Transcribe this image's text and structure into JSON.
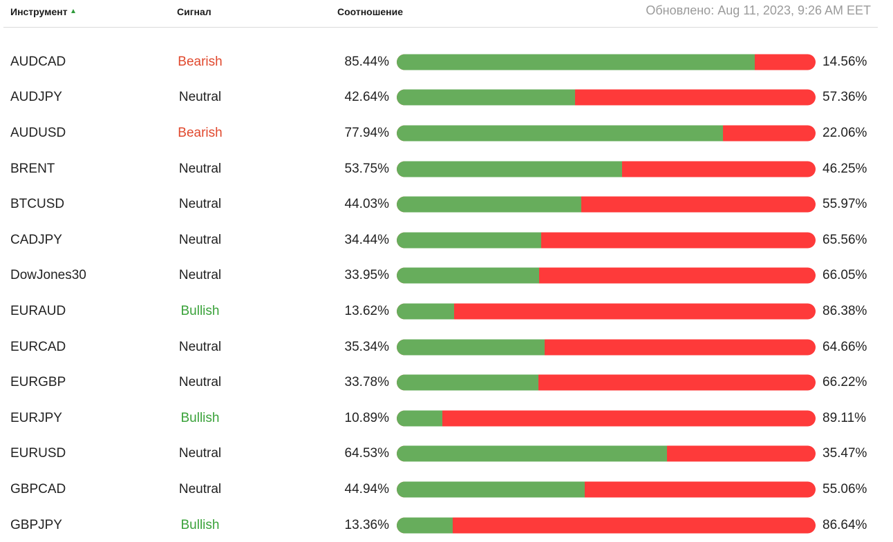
{
  "header": {
    "instrument": "Инструмент",
    "signal": "Сигнал",
    "ratio": "Соотношение",
    "updated": "Обновлено: Aug 11, 2023, 9:26 AM EET"
  },
  "colors": {
    "long": "#67ad5c",
    "short": "#fe3a3a",
    "bearish": "#e0482d",
    "bullish": "#3aa23a",
    "neutral": "#222222"
  },
  "rows": [
    {
      "instrument": "AUDCAD",
      "signal": "Bearish",
      "signal_type": "bearish",
      "long": "85.44%",
      "short": "14.56%",
      "long_value": 85.44
    },
    {
      "instrument": "AUDJPY",
      "signal": "Neutral",
      "signal_type": "neutral",
      "long": "42.64%",
      "short": "57.36%",
      "long_value": 42.64
    },
    {
      "instrument": "AUDUSD",
      "signal": "Bearish",
      "signal_type": "bearish",
      "long": "77.94%",
      "short": "22.06%",
      "long_value": 77.94
    },
    {
      "instrument": "BRENT",
      "signal": "Neutral",
      "signal_type": "neutral",
      "long": "53.75%",
      "short": "46.25%",
      "long_value": 53.75
    },
    {
      "instrument": "BTCUSD",
      "signal": "Neutral",
      "signal_type": "neutral",
      "long": "44.03%",
      "short": "55.97%",
      "long_value": 44.03
    },
    {
      "instrument": "CADJPY",
      "signal": "Neutral",
      "signal_type": "neutral",
      "long": "34.44%",
      "short": "65.56%",
      "long_value": 34.44
    },
    {
      "instrument": "DowJones30",
      "signal": "Neutral",
      "signal_type": "neutral",
      "long": "33.95%",
      "short": "66.05%",
      "long_value": 33.95
    },
    {
      "instrument": "EURAUD",
      "signal": "Bullish",
      "signal_type": "bullish",
      "long": "13.62%",
      "short": "86.38%",
      "long_value": 13.62
    },
    {
      "instrument": "EURCAD",
      "signal": "Neutral",
      "signal_type": "neutral",
      "long": "35.34%",
      "short": "64.66%",
      "long_value": 35.34
    },
    {
      "instrument": "EURGBP",
      "signal": "Neutral",
      "signal_type": "neutral",
      "long": "33.78%",
      "short": "66.22%",
      "long_value": 33.78
    },
    {
      "instrument": "EURJPY",
      "signal": "Bullish",
      "signal_type": "bullish",
      "long": "10.89%",
      "short": "89.11%",
      "long_value": 10.89
    },
    {
      "instrument": "EURUSD",
      "signal": "Neutral",
      "signal_type": "neutral",
      "long": "64.53%",
      "short": "35.47%",
      "long_value": 64.53
    },
    {
      "instrument": "GBPCAD",
      "signal": "Neutral",
      "signal_type": "neutral",
      "long": "44.94%",
      "short": "55.06%",
      "long_value": 44.94
    },
    {
      "instrument": "GBPJPY",
      "signal": "Bullish",
      "signal_type": "bullish",
      "long": "13.36%",
      "short": "86.64%",
      "long_value": 13.36
    }
  ]
}
